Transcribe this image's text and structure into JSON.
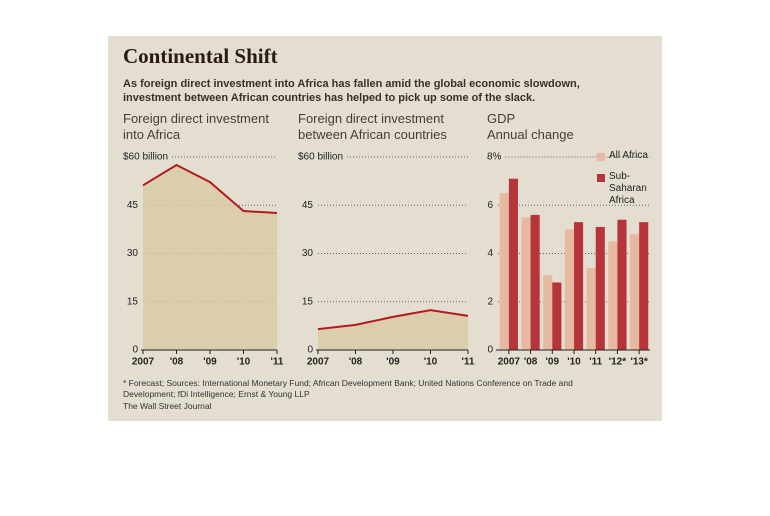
{
  "header": {
    "title": "Continental Shift",
    "subtitle": "As foreign direct investment into Africa has fallen amid the global economic slowdown, investment between African countries has helped to pick up some of the slack."
  },
  "chart_data": [
    {
      "type": "area",
      "title": "Foreign direct investment into Africa",
      "categories": [
        "2007",
        "'08",
        "'09",
        "'10",
        "'11"
      ],
      "values": [
        51.2,
        57.5,
        52.2,
        43.2,
        42.6
      ],
      "color": "#b5191f",
      "fill": "#d8c9a2",
      "ylim": [
        0,
        60
      ],
      "yticks": [
        0,
        15,
        30,
        45,
        {
          "value": 60,
          "label": "$60 billion"
        }
      ],
      "grid": true
    },
    {
      "type": "area",
      "title": "Foreign direct investment between African countries",
      "categories": [
        "2007",
        "'08",
        "'09",
        "'10",
        "'11"
      ],
      "values": [
        6.5,
        7.8,
        10.3,
        12.4,
        10.6
      ],
      "color": "#b5191f",
      "fill": "#d8c9a2",
      "ylim": [
        0,
        60
      ],
      "yticks": [
        0,
        15,
        30,
        45,
        {
          "value": 60,
          "label": "$60 billion"
        }
      ],
      "grid": true
    },
    {
      "type": "bar",
      "title": "GDP",
      "subtitle": "Annual change",
      "categories": [
        "2007",
        "'08",
        "'09",
        "'10",
        "'11",
        "'12*",
        "'13*"
      ],
      "series": [
        {
          "name": "All Africa",
          "color": "#e6b9a0",
          "values": [
            6.5,
            5.5,
            3.1,
            5.0,
            3.4,
            4.5,
            4.8
          ]
        },
        {
          "name": "Sub-Saharan Africa",
          "color": "#b5353a",
          "values": [
            7.1,
            5.6,
            2.8,
            5.3,
            5.1,
            5.4,
            5.3
          ]
        }
      ],
      "ylim": [
        0,
        8
      ],
      "yticks": [
        0,
        2,
        4,
        6,
        {
          "value": 8,
          "label": "8%"
        }
      ],
      "grid": true,
      "legend": "top-right"
    }
  ],
  "footer": {
    "note": "* Forecast; Sources: International Monetary Fund; African Development Bank; United Nations Conference on Trade and Development; fDi Intelligence; Ernst & Young LLP",
    "credit": "The Wall Street Journal"
  }
}
